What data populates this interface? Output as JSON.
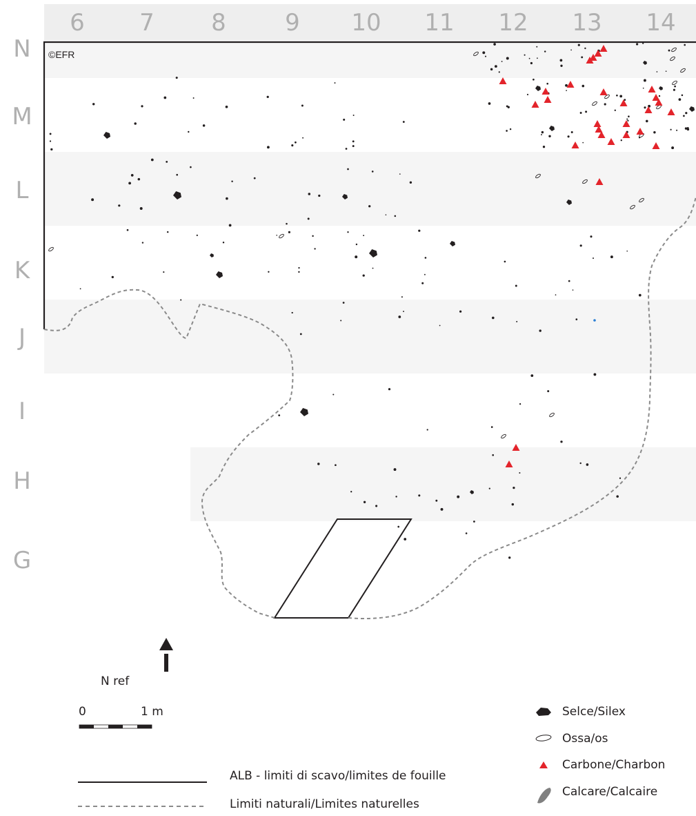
{
  "copyright": "©EFR",
  "columns": [
    "6",
    "7",
    "8",
    "9",
    "10",
    "11",
    "12",
    "13",
    "14"
  ],
  "rows": [
    "N",
    "M",
    "L",
    "K",
    "J",
    "I",
    "H",
    "G"
  ],
  "north": {
    "label": "N ref"
  },
  "scale": {
    "start_label": "0",
    "end_label": "1 m"
  },
  "line_legend": [
    {
      "style": "solid",
      "label": "ALB - limiti di scavo/limites de fouille"
    },
    {
      "style": "dashed",
      "label": "Limiti naturali/Limites naturelles"
    }
  ],
  "symbol_legend": [
    {
      "symbol": "flint",
      "label": "Selce/Silex",
      "color": "#231f20"
    },
    {
      "symbol": "bone",
      "label": "Ossa/os",
      "color": "#231f20"
    },
    {
      "symbol": "charcoal",
      "label": "Carbone/Charbon",
      "color": "#e3242b"
    },
    {
      "symbol": "limestone",
      "label": "Calcare/Calcaire",
      "color": "#808080"
    }
  ],
  "colors": {
    "band": "#f5f5f5",
    "header_band": "#eeeeee",
    "grid_label": "#b0b0b0",
    "charcoal": "#e3242b",
    "ink": "#231f20",
    "dashed_line": "#808080"
  }
}
